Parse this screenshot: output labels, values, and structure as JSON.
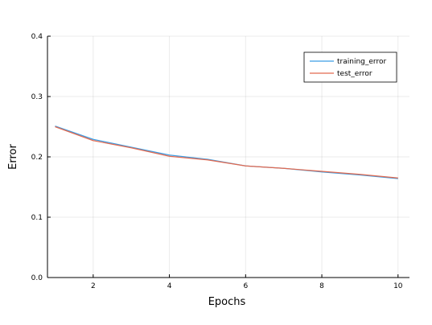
{
  "chart_data": {
    "type": "line",
    "title": "",
    "xlabel": "Epochs",
    "ylabel": "Error",
    "xlim": [
      0.8,
      10.3
    ],
    "ylim": [
      0.0,
      0.4
    ],
    "xticks": [
      2,
      4,
      6,
      8,
      10
    ],
    "yticks": [
      0.0,
      0.1,
      0.2,
      0.3,
      0.4
    ],
    "xtick_labels": [
      "2",
      "4",
      "6",
      "8",
      "10"
    ],
    "ytick_labels": [
      "0.0",
      "0.1",
      "0.2",
      "0.3",
      "0.4"
    ],
    "grid": true,
    "legend_position": "top-right",
    "x": [
      1,
      2,
      3,
      4,
      5,
      6,
      7,
      8,
      9,
      10
    ],
    "series": [
      {
        "name": "training_error",
        "color": "#3b9ee5",
        "values": [
          0.251,
          0.229,
          0.216,
          0.203,
          0.196,
          0.185,
          0.181,
          0.175,
          0.17,
          0.164
        ]
      },
      {
        "name": "test_error",
        "color": "#e2694f",
        "values": [
          0.25,
          0.227,
          0.215,
          0.201,
          0.195,
          0.185,
          0.181,
          0.176,
          0.171,
          0.165
        ]
      }
    ]
  }
}
